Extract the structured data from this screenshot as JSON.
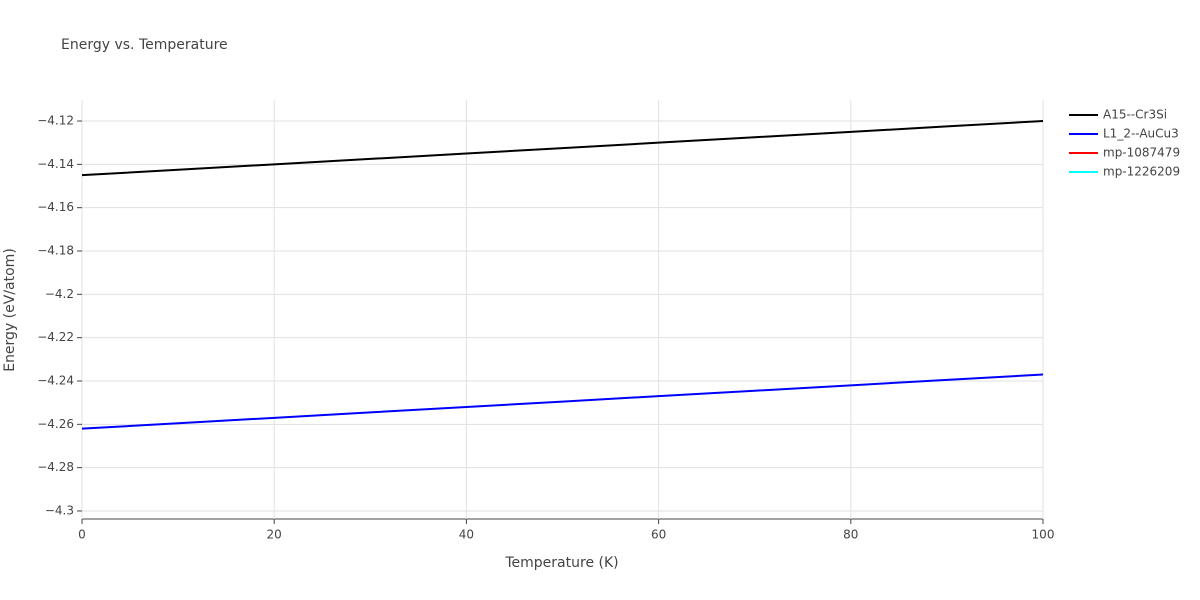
{
  "chart_data": {
    "type": "line",
    "title": "Energy vs. Temperature",
    "x_label": "Temperature (K)",
    "y_label": "Energy (eV/atom)",
    "x": [
      0,
      10,
      20,
      30,
      40,
      50,
      60,
      70,
      80,
      90,
      100
    ],
    "series": [
      {
        "name": "A15--Cr3Si",
        "color": "#000000",
        "values": [
          -4.145,
          -4.1425,
          -4.14,
          -4.1375,
          -4.135,
          -4.1325,
          -4.13,
          -4.1275,
          -4.125,
          -4.1225,
          -4.12
        ]
      },
      {
        "name": "L1_2--AuCu3",
        "color": "#0000ff",
        "values": [
          -4.262,
          -4.2595,
          -4.257,
          -4.2545,
          -4.252,
          -4.2495,
          -4.247,
          -4.2445,
          -4.242,
          -4.2395,
          -4.237
        ]
      },
      {
        "name": "mp-1087479",
        "color": "#ff0000",
        "values": [
          null,
          null,
          null,
          null,
          null,
          null,
          null,
          null,
          null,
          null,
          null
        ]
      },
      {
        "name": "mp-1226209",
        "color": "#00ffff",
        "values": [
          null,
          null,
          null,
          null,
          null,
          null,
          null,
          null,
          null,
          null,
          null
        ]
      }
    ],
    "xlim": [
      0,
      100
    ],
    "xticks": [
      0,
      20,
      40,
      60,
      80,
      100
    ],
    "ylim": [
      -4.3037,
      -4.1103
    ],
    "yticks": [
      {
        "value": -4.3,
        "label": "−4.3"
      },
      {
        "value": -4.28,
        "label": "−4.28"
      },
      {
        "value": -4.26,
        "label": "−4.26"
      },
      {
        "value": -4.24,
        "label": "−4.24"
      },
      {
        "value": -4.22,
        "label": "−4.22"
      },
      {
        "value": -4.2,
        "label": "−4.2"
      },
      {
        "value": -4.18,
        "label": "−4.18"
      },
      {
        "value": -4.16,
        "label": "−4.16"
      },
      {
        "value": -4.14,
        "label": "−4.14"
      },
      {
        "value": -4.12,
        "label": "−4.12"
      }
    ],
    "grid": true,
    "legend": "right"
  }
}
